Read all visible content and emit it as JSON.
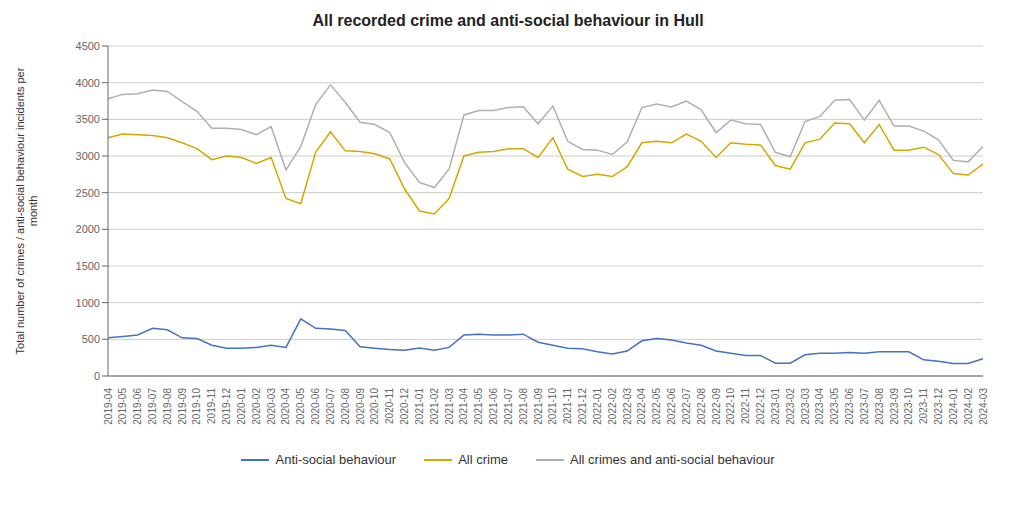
{
  "chart_data": {
    "type": "line",
    "title": "All recorded crime and anti-social behaviour in Hull",
    "y_label": "Total number of crimes / anti-social behaviour incidents per\nmonth",
    "categories": [
      "2019-04",
      "2019-05",
      "2019-06",
      "2019-07",
      "2019-08",
      "2019-09",
      "2019-10",
      "2019-11",
      "2019-12",
      "2020-01",
      "2020-02",
      "2020-03",
      "2020-04",
      "2020-05",
      "2020-06",
      "2020-07",
      "2020-08",
      "2020-09",
      "2020-10",
      "2020-11",
      "2020-12",
      "2021-01",
      "2021-02",
      "2021-03",
      "2021-04",
      "2021-05",
      "2021-06",
      "2021-07",
      "2021-08",
      "2021-09",
      "2021-10",
      "2021-11",
      "2021-12",
      "2022-01",
      "2022-02",
      "2022-03",
      "2022-04",
      "2022-05",
      "2022-06",
      "2022-07",
      "2022-08",
      "2022-09",
      "2022-10",
      "2022-11",
      "2022-12",
      "2023-01",
      "2023-02",
      "2023-03",
      "2023-04",
      "2023-05",
      "2023-06",
      "2023-07",
      "2023-08",
      "2023-09",
      "2023-10",
      "2023-11",
      "2023-12",
      "2024-01",
      "2024-02",
      "2024-03"
    ],
    "series": [
      {
        "name": "Anti-social behaviour",
        "color": "#4472c4",
        "values": [
          520,
          540,
          560,
          650,
          630,
          520,
          510,
          420,
          380,
          380,
          390,
          420,
          390,
          780,
          650,
          640,
          620,
          400,
          380,
          360,
          350,
          380,
          350,
          390,
          560,
          570,
          560,
          560,
          570,
          460,
          420,
          380,
          370,
          330,
          300,
          340,
          480,
          510,
          490,
          450,
          420,
          340,
          310,
          280,
          280,
          175,
          175,
          290,
          310,
          310,
          320,
          310,
          330,
          330,
          330,
          220,
          200,
          170,
          170,
          235
        ]
      },
      {
        "name": "All crime",
        "color": "#d4a800",
        "values": [
          3250,
          3300,
          3290,
          3280,
          3250,
          3180,
          3100,
          2950,
          3000,
          2980,
          2900,
          2980,
          2420,
          2350,
          3050,
          3330,
          3070,
          3060,
          3030,
          2960,
          2550,
          2250,
          2210,
          2420,
          3000,
          3050,
          3060,
          3100,
          3100,
          2980,
          3250,
          2820,
          2720,
          2750,
          2720,
          2850,
          3180,
          3200,
          3180,
          3300,
          3200,
          2980,
          3180,
          3160,
          3150,
          2870,
          2820,
          3180,
          3230,
          3450,
          3440,
          3180,
          3430,
          3080,
          3080,
          3120,
          3020,
          2760,
          2740,
          2890
        ]
      },
      {
        "name": "All crimes and anti-social behaviour",
        "color": "#b0b0b0",
        "values": [
          3780,
          3840,
          3850,
          3900,
          3880,
          3740,
          3610,
          3380,
          3380,
          3360,
          3290,
          3400,
          2810,
          3130,
          3700,
          3970,
          3730,
          3460,
          3430,
          3320,
          2910,
          2640,
          2570,
          2820,
          3560,
          3620,
          3620,
          3660,
          3670,
          3440,
          3680,
          3200,
          3090,
          3080,
          3020,
          3190,
          3660,
          3710,
          3670,
          3750,
          3630,
          3320,
          3490,
          3440,
          3430,
          3050,
          2990,
          3470,
          3540,
          3760,
          3770,
          3490,
          3760,
          3410,
          3410,
          3340,
          3220,
          2940,
          2920,
          3130
        ]
      }
    ],
    "ylim": [
      0,
      4500
    ],
    "yticks": [
      0,
      500,
      1000,
      1500,
      2000,
      2500,
      3000,
      3500,
      4000,
      4500
    ],
    "grid": true,
    "legend": "bottom"
  }
}
